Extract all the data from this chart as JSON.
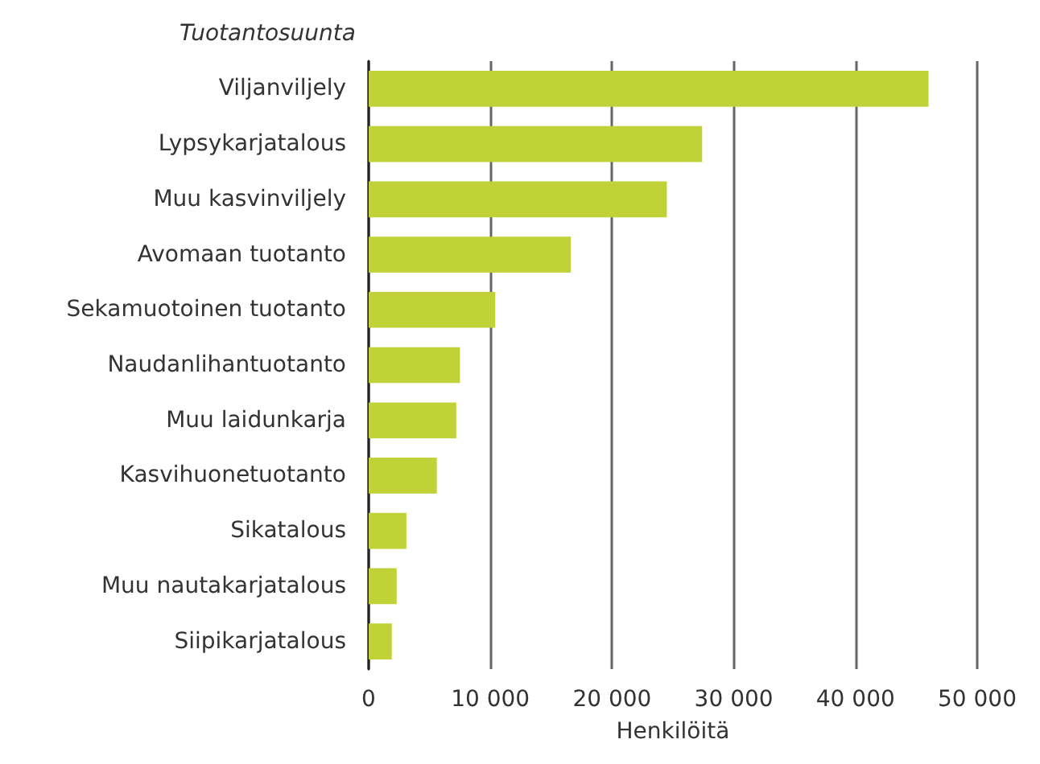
{
  "chart_data": {
    "type": "bar",
    "orientation": "horizontal",
    "ylabel": "Tuotantosuunta",
    "xlabel": "Henkilöitä",
    "categories": [
      "Viljanviljely",
      "Lypsykarjatalous",
      "Muu kasvinviljely",
      "Avomaan tuotanto",
      "Sekamuotoinen tuotanto",
      "Naudanlihantuotanto",
      "Muu laidunkarja",
      "Kasvihuonetuotanto",
      "Sikatalous",
      "Muu nautakarjatalous",
      "Siipikarjatalous"
    ],
    "values": [
      46000,
      27400,
      24500,
      16600,
      10400,
      7500,
      7200,
      5600,
      3100,
      2300,
      1900
    ],
    "color": "#c0d238",
    "xlim": [
      0,
      50000
    ],
    "xticks": [
      0,
      {
        "value": 10000,
        "label": "10 000"
      },
      {
        "value": 20000,
        "label": "20 000"
      },
      {
        "value": 30000,
        "label": "30 000"
      },
      {
        "value": 40000,
        "label": "40 000"
      },
      {
        "value": 50000,
        "label": "50 000"
      }
    ],
    "grid": "x"
  }
}
